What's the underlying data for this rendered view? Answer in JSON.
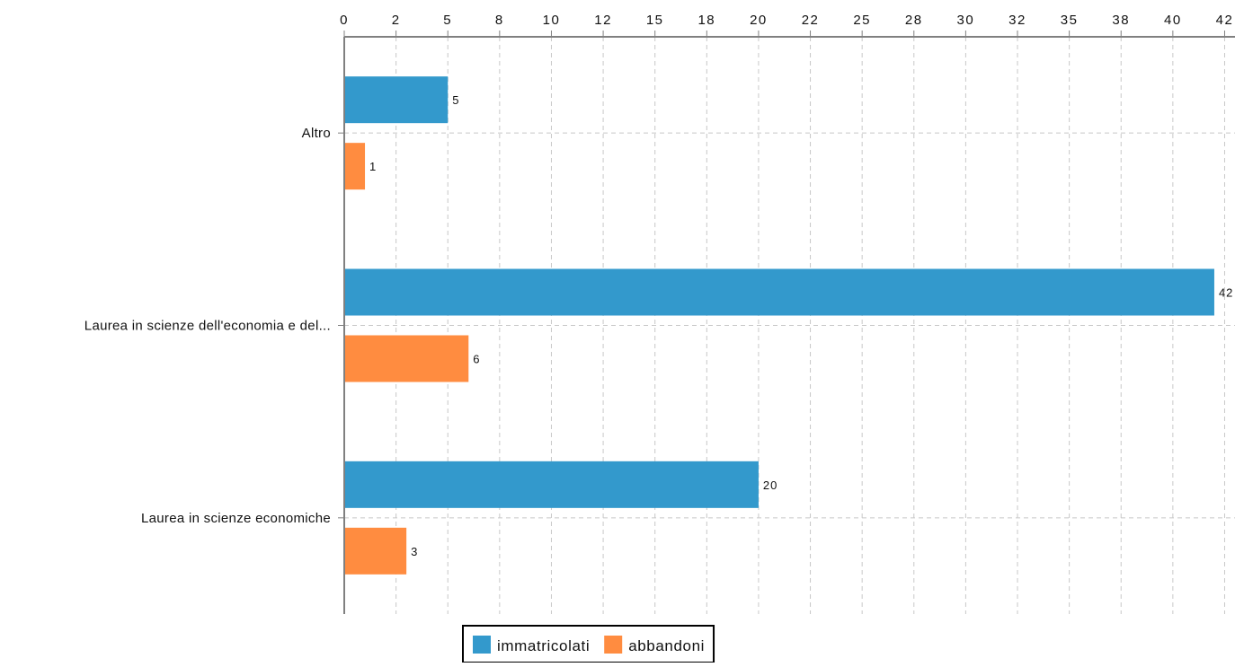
{
  "chart_data": {
    "type": "bar",
    "orientation": "horizontal",
    "categories": [
      "Altro",
      "Laurea in scienze dell'economia e del...",
      "Laurea in scienze economiche"
    ],
    "series": [
      {
        "name": "immatricolati",
        "color": "#3399cc",
        "values": [
          5,
          42,
          20
        ]
      },
      {
        "name": "abbandoni",
        "color": "#ff8c40",
        "values": [
          1,
          6,
          3
        ]
      }
    ],
    "x_ticks": [
      "0",
      "2",
      "5",
      "8",
      "10",
      "12",
      "15",
      "18",
      "20",
      "22",
      "25",
      "28",
      "30",
      "32",
      "35",
      "38",
      "40",
      "42"
    ],
    "xlim": [
      0,
      43
    ],
    "x_axis_position": "top",
    "grid": true,
    "legend_position": "bottom-center",
    "title": "",
    "xlabel": "",
    "ylabel": ""
  }
}
